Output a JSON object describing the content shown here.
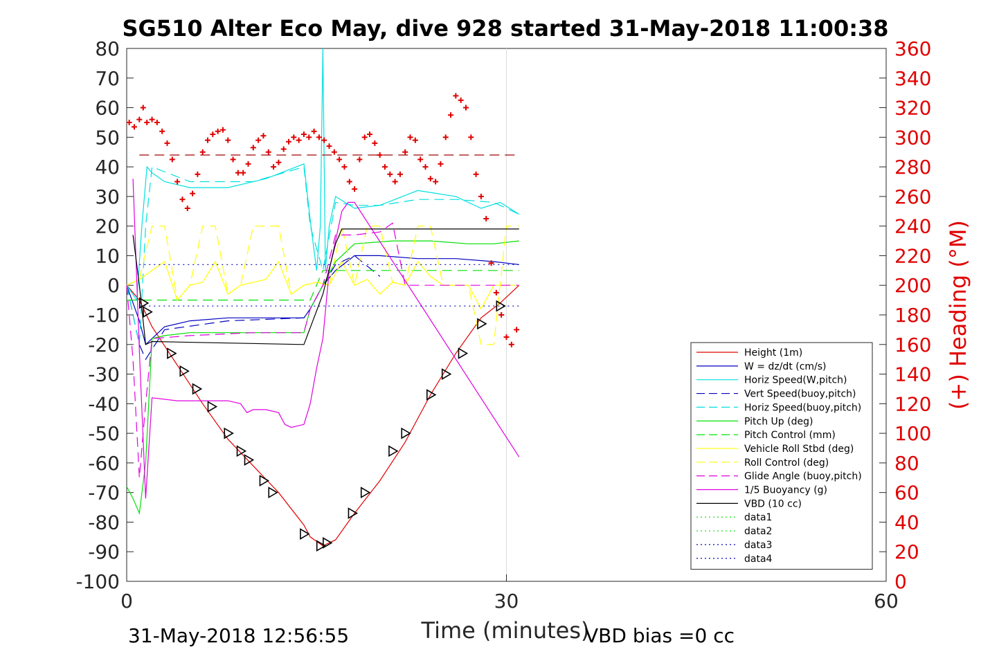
{
  "chart_data": {
    "type": "line",
    "title": "SG510 Alter Eco May, dive 928 started 31-May-2018 11:00:38",
    "xlabel": "Time (minutes)",
    "ylabel": "",
    "y2label": "(+) Heading (°M)",
    "xlim": [
      0,
      60
    ],
    "ylim": [
      -100,
      80
    ],
    "y2lim": [
      0,
      360
    ],
    "x_ticks": [
      "0",
      "30",
      "60"
    ],
    "y_ticks": [
      "80",
      "70",
      "60",
      "50",
      "40",
      "30",
      "20",
      "10",
      "0",
      "-10",
      "-20",
      "-30",
      "-40",
      "-50",
      "-60",
      "-70",
      "-80",
      "-90",
      "-100"
    ],
    "y2_ticks": [
      "360",
      "340",
      "320",
      "300",
      "280",
      "260",
      "240",
      "220",
      "200",
      "180",
      "160",
      "140",
      "120",
      "100",
      "80",
      "60",
      "40",
      "20",
      "0"
    ],
    "grid": "x only",
    "legend_position": "bottom-right",
    "footer_left": "31-May-2018 12:56:55",
    "footer_right": "VBD bias =0 cc",
    "series": [
      {
        "name": "Height (1m)",
        "color": "#e00000",
        "style": "solid",
        "x": [
          0,
          1,
          2,
          4,
          6,
          8,
          10,
          12,
          14,
          14.5,
          15.5,
          16.5,
          18,
          20,
          22,
          24,
          26,
          28,
          29.5,
          31
        ],
        "y": [
          0,
          -5,
          -14,
          -27,
          -40,
          -52,
          -61,
          -70,
          -81,
          -85,
          -88,
          -86,
          -77,
          -66,
          -53,
          -37,
          -23,
          -11,
          -6,
          0
        ]
      },
      {
        "name": "W = dz/dt (cm/s)",
        "color": "#0000c0",
        "style": "solid",
        "x": [
          0,
          1,
          1.5,
          3,
          5,
          8,
          11,
          14,
          14.5,
          15.5,
          16.5,
          18,
          20,
          23,
          26,
          29,
          31
        ],
        "y": [
          0,
          -12,
          -20,
          -14,
          -12,
          -11,
          -11,
          -11,
          -8,
          0,
          5,
          10,
          10,
          9,
          9,
          8,
          7
        ]
      },
      {
        "name": "Horiz Speed(W,pitch)",
        "color": "#00e0e0",
        "style": "solid",
        "x": [
          0,
          0.8,
          1.2,
          1.6,
          2,
          3,
          5,
          8,
          11,
          14,
          14.5,
          15,
          15.3,
          15.5,
          15.7,
          16,
          16.5,
          18,
          20,
          23,
          26,
          28,
          29.5,
          31
        ],
        "y": [
          0,
          -5,
          20,
          40,
          38,
          35,
          33,
          33,
          36,
          41,
          22,
          5,
          20,
          85,
          5,
          20,
          30,
          26,
          27,
          32,
          30,
          26,
          28,
          24
        ]
      },
      {
        "name": "Vert Speed(buoy,pitch)",
        "color": "#0000c0",
        "style": "dash",
        "x": [
          0,
          1,
          1.5,
          3,
          8,
          14,
          14.5,
          15.5,
          16.5,
          18,
          20
        ],
        "y": [
          0,
          -20,
          -25,
          -15,
          -12,
          -11,
          -8,
          0,
          7,
          10,
          3
        ]
      },
      {
        "name": "Horiz Speed(buoy,pitch)",
        "color": "#00e0e0",
        "style": "dash",
        "x": [
          0,
          1,
          1.5,
          2,
          5,
          10,
          14,
          14.5,
          15.5,
          16.5,
          18,
          20,
          23,
          26,
          29,
          31
        ],
        "y": [
          0,
          -20,
          20,
          40,
          35,
          35,
          40,
          20,
          5,
          28,
          27,
          27,
          29,
          29,
          28,
          24
        ]
      },
      {
        "name": "Pitch Up (deg)",
        "color": "#00e000",
        "style": "solid",
        "x": [
          0,
          0.5,
          1,
          1.5,
          2,
          3,
          5,
          8,
          11,
          14,
          14.5,
          15.5,
          16.5,
          18,
          21,
          24,
          27,
          29,
          31
        ],
        "y": [
          -68,
          -72,
          -77,
          -60,
          -18,
          -17,
          -16,
          -16,
          -16,
          -16,
          -8,
          0,
          8,
          14,
          15,
          15,
          14,
          14,
          15
        ]
      },
      {
        "name": "Pitch Control (mm)",
        "color": "#00e000",
        "style": "dash",
        "x": [
          0,
          1.5,
          14.5,
          15.5,
          31
        ],
        "y": [
          -5,
          -5,
          -5,
          5,
          5
        ]
      },
      {
        "name": "Vehicle Roll Stbd (deg)",
        "color": "#ffff00",
        "style": "solid",
        "x": [
          0,
          1,
          2,
          3,
          4,
          5,
          6,
          7,
          8,
          9,
          10,
          11,
          12,
          13,
          14,
          15,
          16,
          17,
          18,
          19,
          20,
          21,
          22,
          23,
          24,
          25,
          26,
          27,
          28,
          29,
          30,
          31
        ],
        "y": [
          0,
          2,
          5,
          8,
          -5,
          0,
          1,
          8,
          -3,
          0,
          1,
          2,
          8,
          -3,
          0,
          1,
          0,
          8,
          0,
          2,
          -3,
          1,
          0,
          8,
          3,
          0,
          0,
          0,
          -8,
          0,
          0,
          0
        ]
      },
      {
        "name": "Roll Control (deg)",
        "color": "#ffff00",
        "style": "dash",
        "x": [
          0,
          1,
          2,
          3,
          4,
          5,
          6,
          7,
          8,
          9,
          10,
          11,
          12,
          13,
          14,
          15,
          16,
          17,
          18,
          19,
          20,
          21,
          22,
          23,
          24,
          25,
          26,
          27,
          28,
          29,
          30,
          31
        ],
        "y": [
          0,
          2,
          20,
          20,
          -5,
          0,
          20,
          20,
          -3,
          0,
          20,
          20,
          20,
          -3,
          0,
          1,
          0,
          20,
          0,
          20,
          20,
          1,
          0,
          20,
          20,
          0,
          0,
          0,
          -20,
          -20,
          20,
          20
        ]
      },
      {
        "name": "Glide Angle (buoy,pitch)",
        "color": "#e000e0",
        "style": "dash",
        "x": [
          0,
          0.5,
          1,
          1.5,
          2,
          5,
          10,
          14,
          14.5,
          15.5,
          16.5,
          18,
          20,
          21,
          22,
          24,
          28,
          31
        ],
        "y": [
          0,
          -25,
          -65,
          -40,
          -18,
          -17,
          -16,
          -16,
          -8,
          0,
          17,
          17,
          18,
          21,
          0,
          0,
          0,
          0
        ]
      },
      {
        "name": "1/5 Buoyancy (g)",
        "color": "#e000e0",
        "style": "solid",
        "x": [
          0.5,
          1,
          1.5,
          2,
          4,
          8,
          9,
          9.5,
          10,
          11,
          12,
          12.5,
          13,
          14,
          14.5,
          15,
          15.5,
          16,
          17,
          17.5,
          18,
          31
        ],
        "y": [
          36,
          -22,
          -72,
          -38,
          -39,
          -39,
          -40,
          -43,
          -42,
          -42,
          -43,
          -47,
          -48,
          -47,
          -40,
          -28,
          -18,
          5,
          25,
          28,
          28,
          -58
        ]
      },
      {
        "name": "VBD (10 cc)",
        "color": "#000000",
        "style": "solid",
        "x": [
          0.5,
          1,
          1.5,
          2,
          14,
          15.5,
          16.5,
          17,
          31
        ],
        "y": [
          17,
          0,
          -20,
          -19,
          -20,
          -3,
          14,
          19,
          19
        ]
      },
      {
        "name": "data1",
        "color": "#00e000",
        "style": "dot",
        "x": [],
        "y": []
      },
      {
        "name": "data2",
        "color": "#00e000",
        "style": "dot",
        "x": [],
        "y": []
      },
      {
        "name": "data3",
        "color": "#0000c0",
        "style": "dot",
        "x": [
          1,
          31
        ],
        "y": [
          7,
          7
        ]
      },
      {
        "name": "data4",
        "color": "#0000c0",
        "style": "dot",
        "x": [
          1,
          31
        ],
        "y": [
          -7,
          -7
        ]
      }
    ],
    "heading_reference": {
      "color": "#a00000",
      "style": "dash",
      "x": [
        1,
        31
      ],
      "y2": [
        288,
        288
      ]
    },
    "heading_points": {
      "color": "#e00000",
      "marker": "+",
      "x": [
        0.2,
        0.6,
        1,
        1.3,
        1.6,
        2,
        2.4,
        2.8,
        3.2,
        3.6,
        4,
        4.4,
        4.8,
        5.2,
        5.6,
        6,
        6.4,
        6.8,
        7.2,
        7.6,
        8,
        8.4,
        8.8,
        9.2,
        9.6,
        10,
        10.4,
        10.8,
        11.2,
        11.6,
        12,
        12.4,
        12.8,
        13.2,
        13.6,
        14,
        14.4,
        14.8,
        15.2,
        15.6,
        16,
        16.4,
        16.8,
        17.2,
        17.6,
        18,
        18.4,
        18.8,
        19.2,
        19.6,
        20,
        20.4,
        20.8,
        21.2,
        21.6,
        22,
        22.4,
        22.8,
        23.2,
        23.6,
        24,
        24.4,
        24.8,
        25.2,
        25.6,
        26,
        26.4,
        26.8,
        27.2,
        27.6,
        28,
        28.4,
        28.8,
        29.2,
        29.6,
        30,
        30.4,
        30.8
      ],
      "y2": [
        310,
        307,
        312,
        320,
        310,
        312,
        310,
        304,
        296,
        285,
        270,
        258,
        252,
        262,
        275,
        290,
        298,
        302,
        304,
        305,
        298,
        285,
        276,
        276,
        282,
        293,
        298,
        301,
        290,
        280,
        283,
        292,
        297,
        300,
        298,
        302,
        300,
        304,
        300,
        298,
        294,
        290,
        285,
        280,
        270,
        265,
        285,
        300,
        302,
        296,
        288,
        280,
        275,
        270,
        275,
        290,
        300,
        298,
        285,
        280,
        272,
        270,
        282,
        300,
        315,
        328,
        325,
        320,
        300,
        275,
        260,
        245,
        215,
        195,
        180,
        165,
        160,
        170
      ]
    },
    "markers": {
      "color": "#000000",
      "shape": "triangle",
      "x": [
        1.3,
        1.6,
        3.5,
        4.5,
        5.5,
        6.7,
        8,
        9,
        9.6,
        10.8,
        11.5,
        14,
        15.3,
        15.8,
        17.8,
        18.8,
        21,
        22,
        24,
        25.2,
        26.5,
        28,
        29.5
      ],
      "y": [
        -6,
        -9,
        -23,
        -29,
        -35,
        -41,
        -50,
        -56,
        -59,
        -66,
        -70,
        -84,
        -88,
        -87,
        -77,
        -70,
        -56,
        -50,
        -37,
        -30,
        -23,
        -13,
        -7
      ]
    }
  }
}
